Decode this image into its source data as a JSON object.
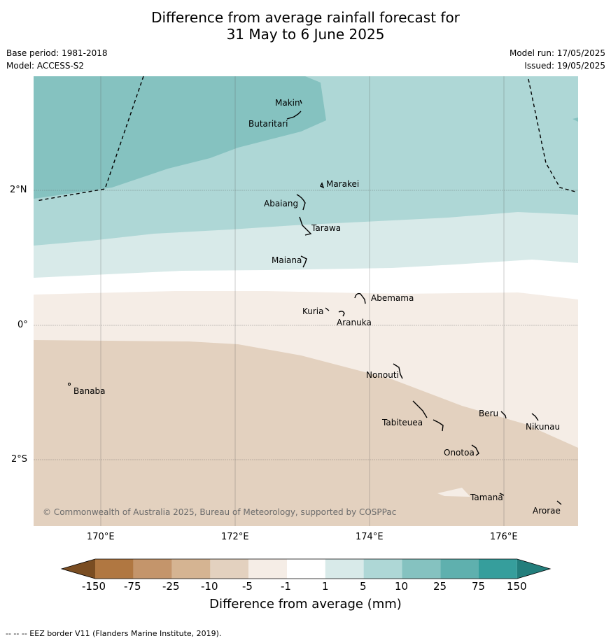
{
  "title_line1": "Difference from average rainfall forecast for",
  "title_line2": "31 May to 6 June 2025",
  "base_period": "Base period: 1981-2018",
  "model": "Model: ACCESS-S2",
  "model_run": "Model run: 17/05/2025",
  "issued": "Issued: 19/05/2025",
  "lat_labels": [
    "2°N",
    "0°",
    "2°S"
  ],
  "lon_labels": [
    "170°E",
    "172°E",
    "174°E",
    "176°E"
  ],
  "places": [
    "Makin",
    "Butaritari",
    "Marakei",
    "Abaiang",
    "Tarawa",
    "Maiana",
    "Abemama",
    "Kuria",
    "Aranuka",
    "Nonouti",
    "Banaba",
    "Beru",
    "Nikunau",
    "Tabiteuea",
    "Onotoa",
    "Tamana",
    "Arorae"
  ],
  "copyright": "© Commonwealth of Australia 2025, Bureau of Meteorology, supported by COSPPac",
  "colorbar": {
    "ticks": [
      "-150",
      "-75",
      "-25",
      "-10",
      "-5",
      "-1",
      "1",
      "5",
      "10",
      "25",
      "75",
      "150"
    ],
    "colors": [
      "#7a4d22",
      "#b07741",
      "#c4956b",
      "#d5b492",
      "#e3d1bf",
      "#f5ede6",
      "#ffffff",
      "#d8eae9",
      "#aed7d6",
      "#85c2c0",
      "#5fb0ae",
      "#369e9c",
      "#237e7c"
    ],
    "title": "Difference from average (mm)"
  },
  "footnote": "-- -- -- EEZ border V11 (Flanders Marine Institute, 2019).",
  "legend_line_style": "dashed"
}
